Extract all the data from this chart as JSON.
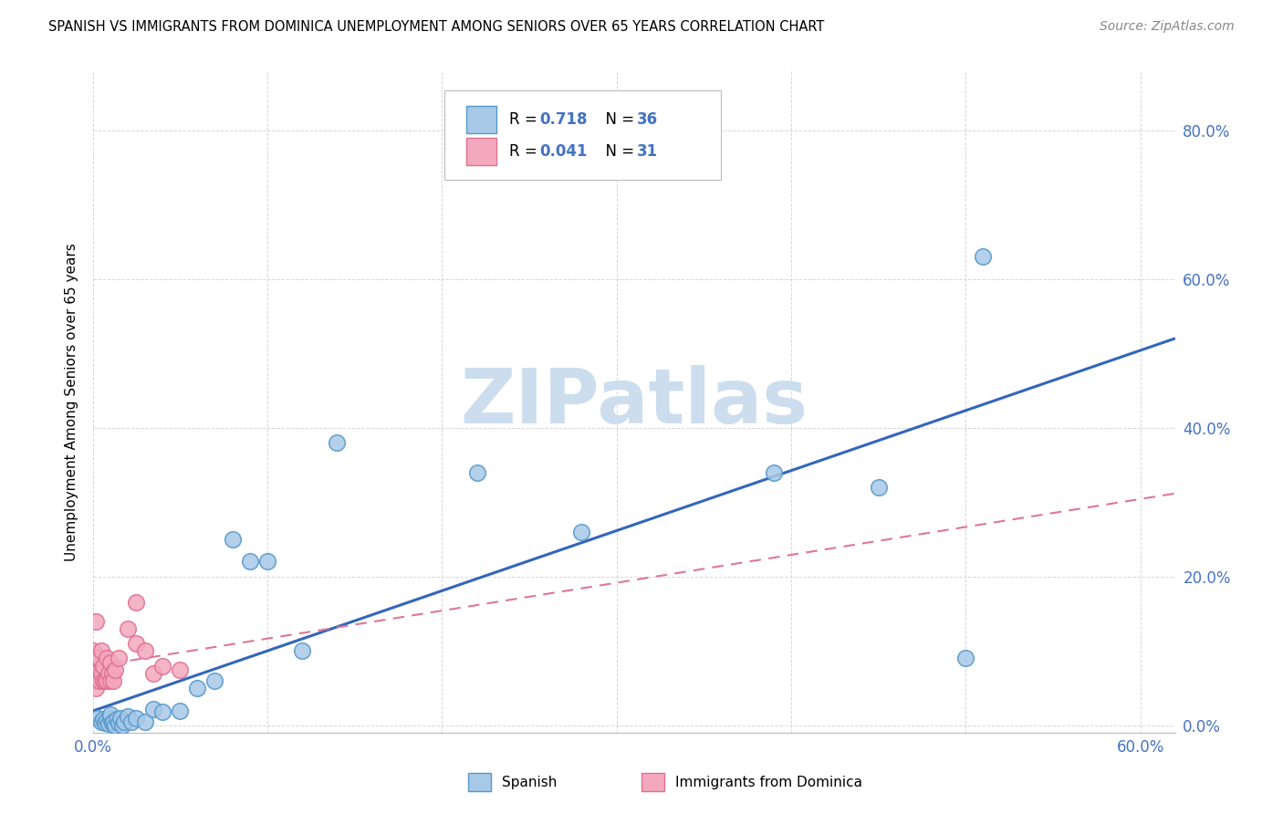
{
  "title": "SPANISH VS IMMIGRANTS FROM DOMINICA UNEMPLOYMENT AMONG SENIORS OVER 65 YEARS CORRELATION CHART",
  "source": "Source: ZipAtlas.com",
  "ylabel": "Unemployment Among Seniors over 65 years",
  "xlim": [
    0,
    0.62
  ],
  "ylim": [
    -0.01,
    0.88
  ],
  "x_ticks": [
    0.0,
    0.1,
    0.2,
    0.3,
    0.4,
    0.5,
    0.6
  ],
  "y_ticks": [
    0.0,
    0.2,
    0.4,
    0.6,
    0.8
  ],
  "legend_r1": "0.718",
  "legend_n1": "36",
  "legend_r2": "0.041",
  "legend_n2": "31",
  "color_spanish_fill": "#A8C8E8",
  "color_spanish_edge": "#5599CC",
  "color_dominica_fill": "#F4A8C0",
  "color_dominica_edge": "#E07090",
  "color_blue_line": "#3366BB",
  "color_pink_line": "#DD7799",
  "watermark_color": "#CCDDEE",
  "background_color": "#FFFFFF",
  "grid_color": "#CCCCCC",
  "tick_color": "#4472C4",
  "spanish_x": [
    0.003,
    0.005,
    0.006,
    0.007,
    0.008,
    0.009,
    0.01,
    0.01,
    0.011,
    0.012,
    0.013,
    0.014,
    0.015,
    0.016,
    0.017,
    0.018,
    0.02,
    0.022,
    0.025,
    0.03,
    0.035,
    0.04,
    0.05,
    0.06,
    0.07,
    0.08,
    0.09,
    0.1,
    0.12,
    0.14,
    0.22,
    0.28,
    0.39,
    0.45,
    0.5,
    0.51
  ],
  "spanish_y": [
    0.01,
    0.005,
    0.008,
    0.003,
    0.007,
    0.002,
    0.01,
    0.015,
    0.003,
    0.005,
    0.0,
    0.008,
    0.003,
    0.01,
    0.0,
    0.005,
    0.012,
    0.005,
    0.01,
    0.005,
    0.022,
    0.018,
    0.02,
    0.05,
    0.06,
    0.25,
    0.22,
    0.22,
    0.1,
    0.38,
    0.34,
    0.26,
    0.34,
    0.32,
    0.09,
    0.63
  ],
  "dominica_x": [
    0.0,
    0.0,
    0.001,
    0.001,
    0.002,
    0.002,
    0.002,
    0.003,
    0.003,
    0.004,
    0.004,
    0.005,
    0.005,
    0.006,
    0.006,
    0.007,
    0.008,
    0.008,
    0.009,
    0.01,
    0.01,
    0.011,
    0.012,
    0.013,
    0.015,
    0.02,
    0.025,
    0.03,
    0.035,
    0.04,
    0.05
  ],
  "dominica_y": [
    0.08,
    0.1,
    0.08,
    0.06,
    0.05,
    0.09,
    0.14,
    0.07,
    0.09,
    0.06,
    0.09,
    0.07,
    0.1,
    0.06,
    0.08,
    0.06,
    0.06,
    0.09,
    0.07,
    0.06,
    0.085,
    0.07,
    0.06,
    0.075,
    0.09,
    0.13,
    0.11,
    0.1,
    0.07,
    0.08,
    0.075
  ],
  "dominica_isolated_x": [
    0.025
  ],
  "dominica_isolated_y": [
    0.165
  ]
}
